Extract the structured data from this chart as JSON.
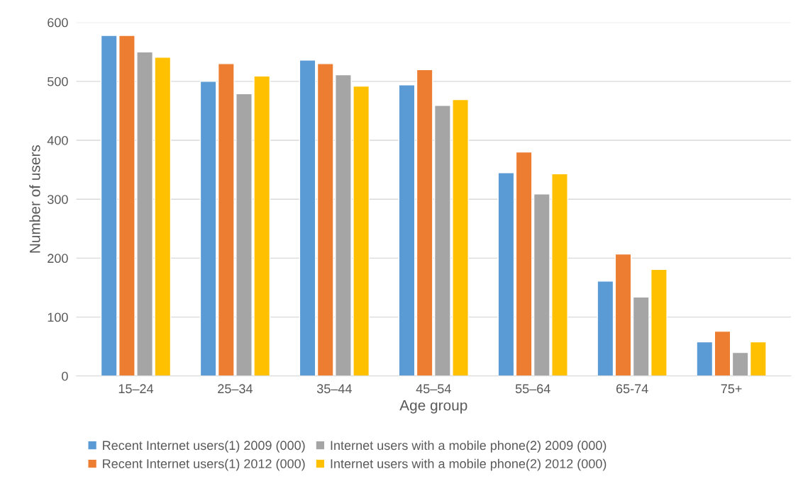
{
  "chart_data": {
    "type": "bar",
    "xlabel": "Age group",
    "ylabel": "Number of users",
    "categories": [
      "15–24",
      "25–34",
      "35–44",
      "45–54",
      "55–64",
      "65-74",
      "75+"
    ],
    "series": [
      {
        "name": "Recent Internet users(1) 2009 (000)",
        "color": "#5b9bd5",
        "values": [
          578,
          500,
          536,
          494,
          345,
          161,
          58
        ]
      },
      {
        "name": "Recent Internet users(1) 2012 (000)",
        "color": "#ed7d31",
        "values": [
          578,
          530,
          530,
          520,
          380,
          207,
          76
        ]
      },
      {
        "name": "Internet users with a mobile phone(2) 2009 (000)",
        "color": "#a5a5a5",
        "values": [
          550,
          479,
          511,
          459,
          309,
          134,
          40
        ]
      },
      {
        "name": "Internet users with a mobile phone(2) 2012 (000)",
        "color": "#ffc000",
        "values": [
          541,
          509,
          492,
          469,
          343,
          181,
          58
        ]
      }
    ],
    "ylim": [
      0,
      600
    ],
    "yticks": [
      0,
      100,
      200,
      300,
      400,
      500,
      600
    ],
    "grid": "y",
    "legend": "bottom"
  }
}
